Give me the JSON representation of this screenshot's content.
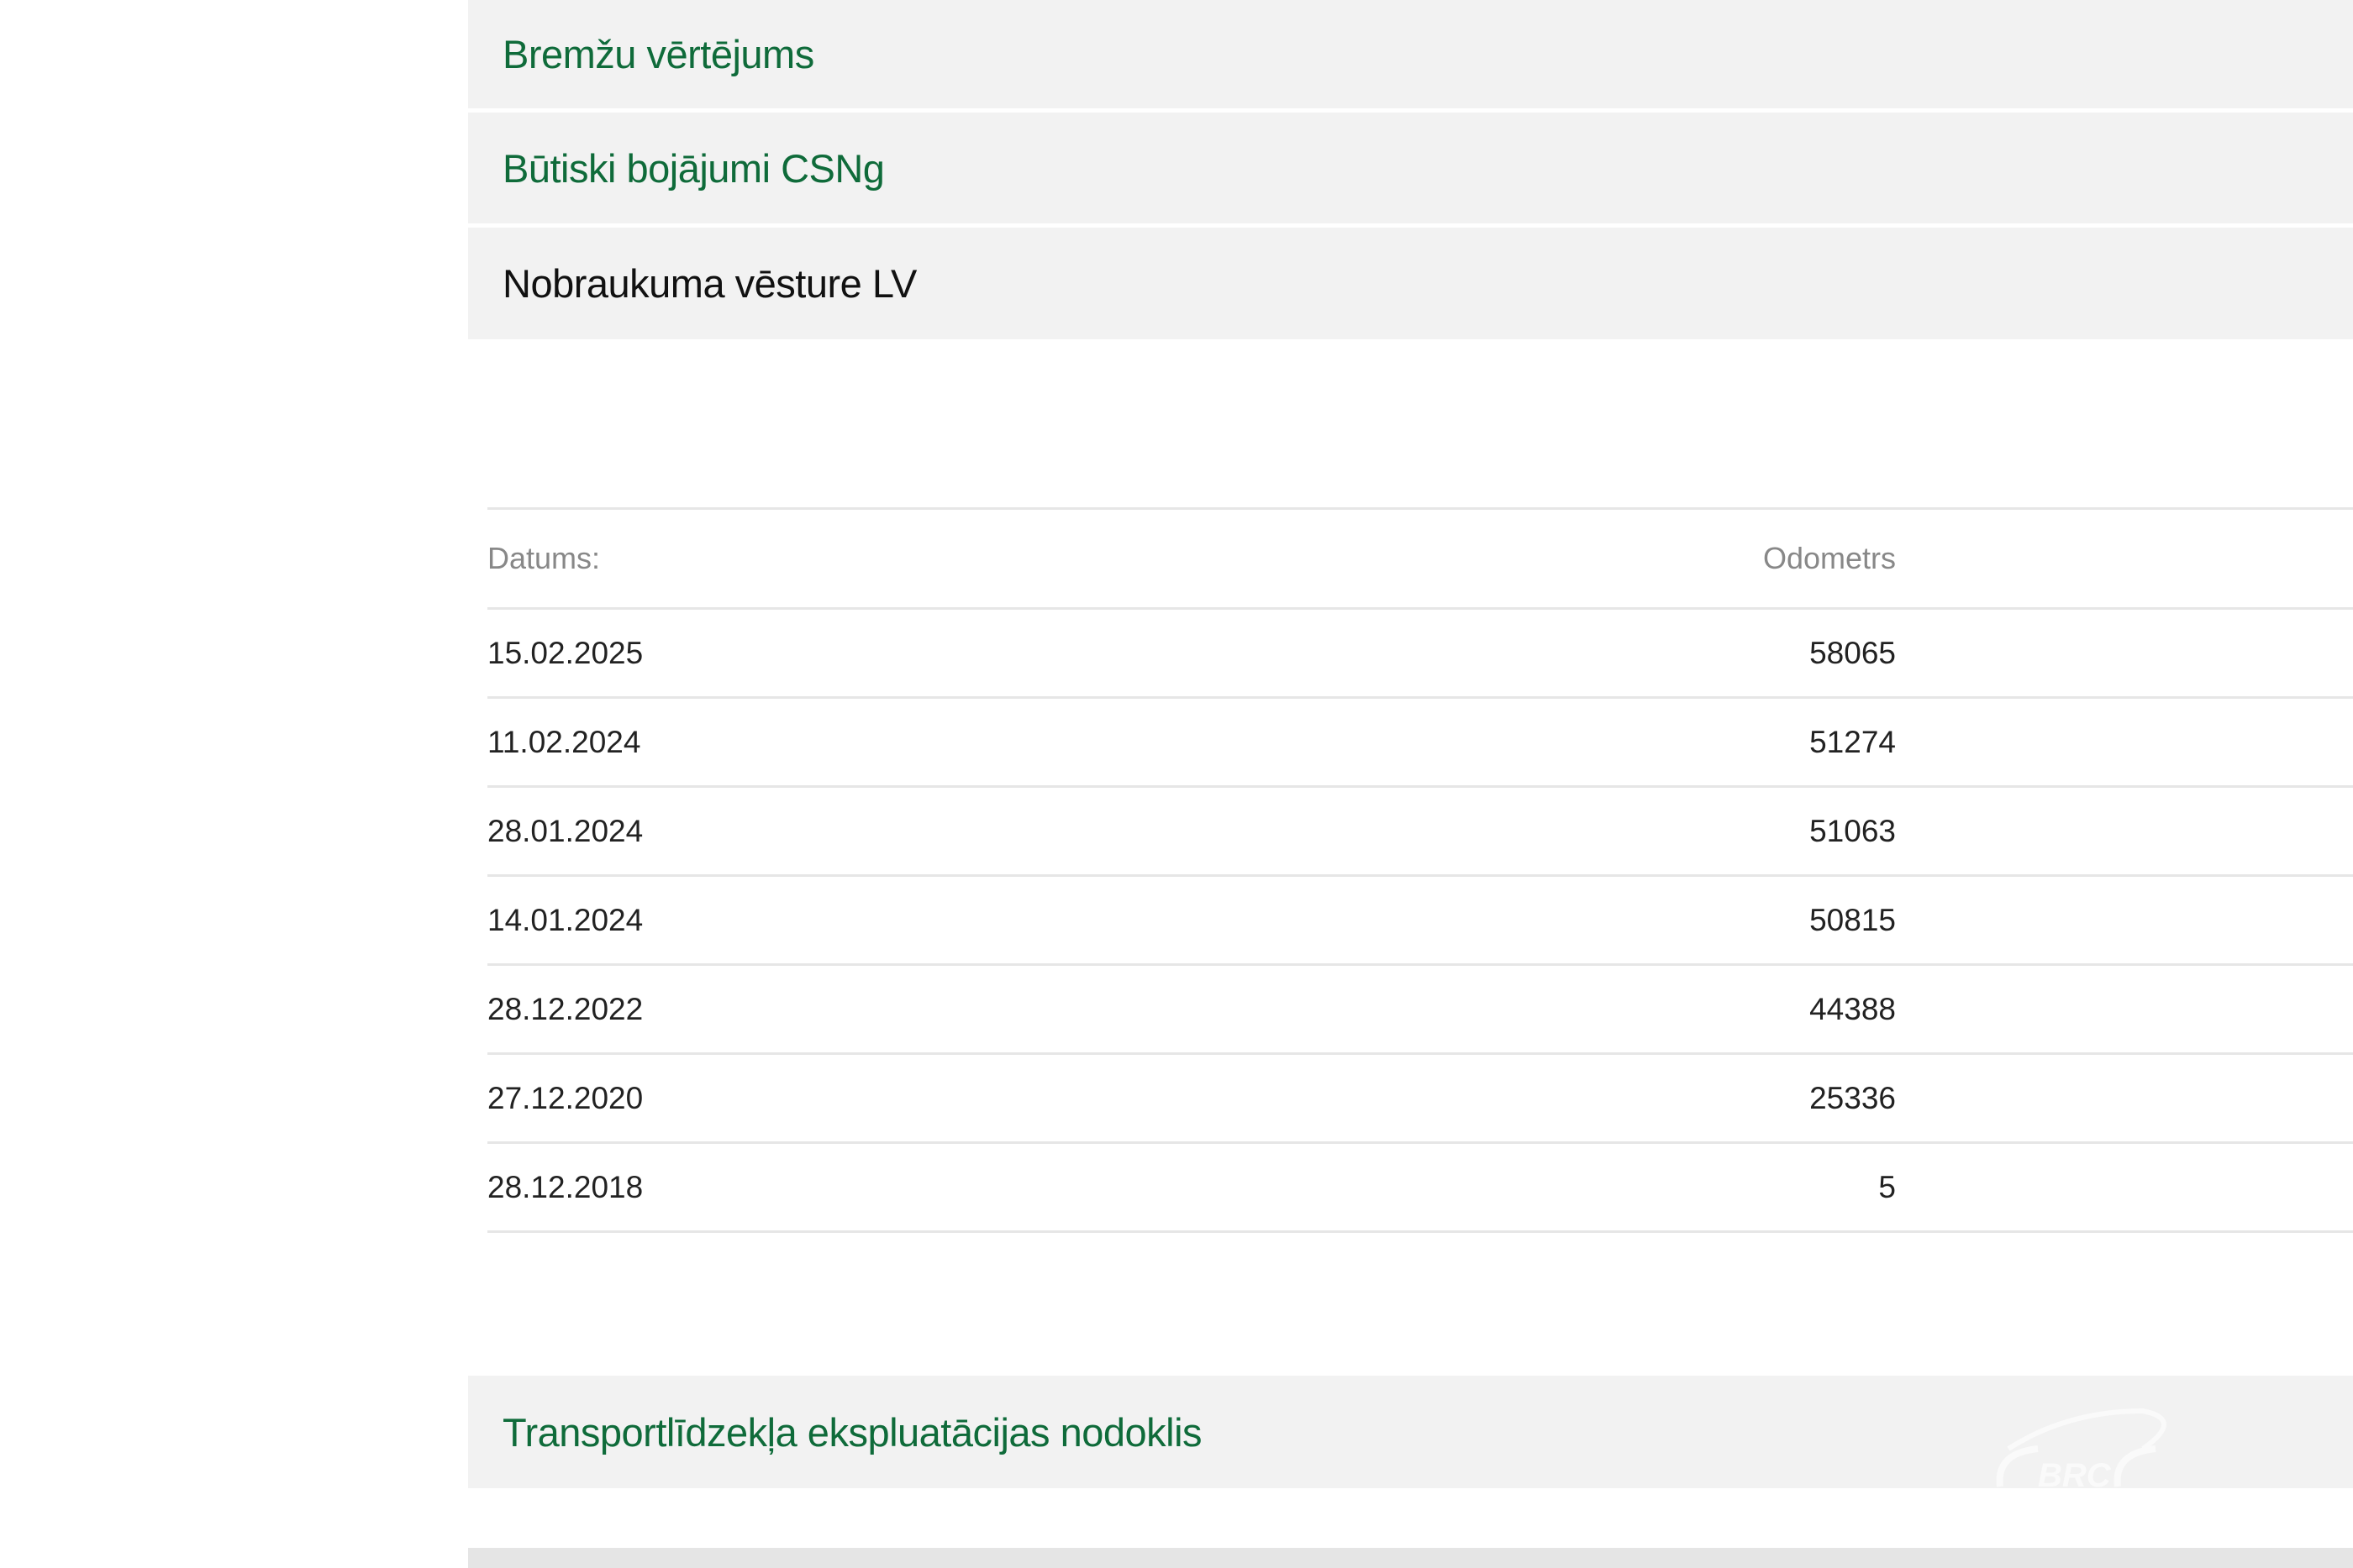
{
  "sections": [
    {
      "title": "Bremžu vērtējums",
      "color": "#0f6b3a"
    },
    {
      "title": "Būtiski bojājumi CSNg",
      "color": "#0f6b3a"
    },
    {
      "title": "Nobraukuma vēsture LV",
      "color": "#111111"
    }
  ],
  "mileage_table": {
    "headers": {
      "date": "Datums:",
      "odometer": "Odometrs"
    },
    "rows": [
      {
        "date": "15.02.2025",
        "odometer": "58065"
      },
      {
        "date": "11.02.2024",
        "odometer": "51274"
      },
      {
        "date": "28.01.2024",
        "odometer": "51063"
      },
      {
        "date": "14.01.2024",
        "odometer": "50815"
      },
      {
        "date": "28.12.2022",
        "odometer": "44388"
      },
      {
        "date": "27.12.2020",
        "odometer": "25336"
      },
      {
        "date": "28.12.2018",
        "odometer": "5"
      }
    ]
  },
  "tax_section": {
    "title": "Transportlīdzekļa ekspluatācijas nodoklis"
  },
  "watermark": {
    "text": "BRC"
  }
}
